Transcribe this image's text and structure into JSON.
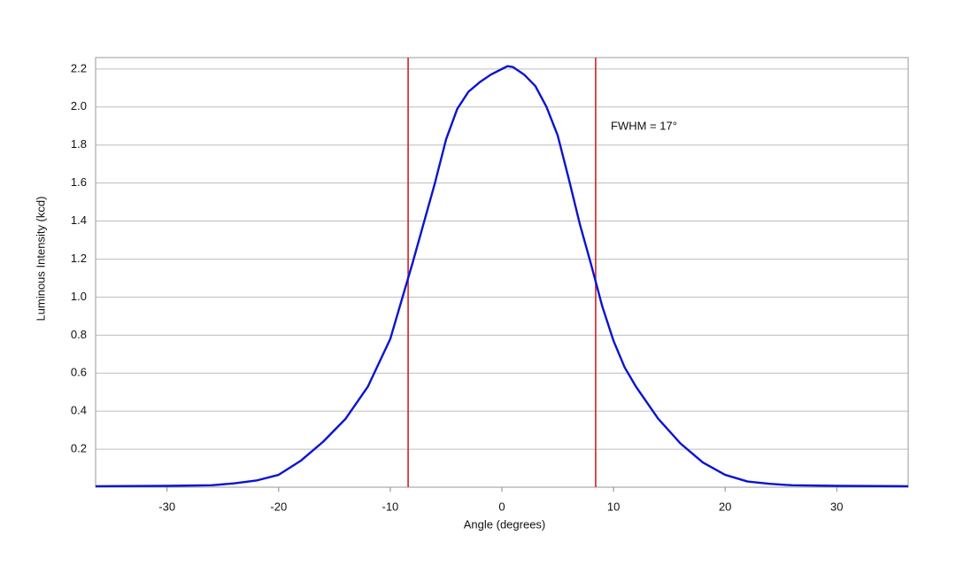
{
  "chart_data": {
    "type": "line",
    "x_label": "Angle (degrees)",
    "y_label": "Luminous Intensity (kcd)",
    "annotation": "FWHM = 17°",
    "xlim": [
      -36.4,
      36.4
    ],
    "ylim": [
      0,
      2.26
    ],
    "xticks": [
      -30,
      -20,
      -10,
      0,
      10,
      20,
      30
    ],
    "yticks": [
      0.2,
      0.4,
      0.6,
      0.8,
      {
        "value": 1,
        "label": "1.0"
      },
      1.2,
      1.4,
      1.6,
      1.8,
      {
        "value": 2,
        "label": "2.0"
      },
      2.2
    ],
    "grid": true,
    "x": [
      -36.4,
      -30,
      -26,
      -24,
      -22,
      -20,
      -18,
      -16,
      -14,
      -12,
      -10,
      -8,
      -6,
      -5,
      -4,
      -3,
      -2,
      -1,
      0,
      0.5,
      1,
      2,
      3,
      4,
      5,
      6,
      7,
      8,
      9,
      10,
      11,
      12,
      14,
      16,
      18,
      20,
      22,
      24,
      26,
      30,
      36.4
    ],
    "series": [
      {
        "color": "#0a14d0",
        "values": [
          0.005,
          0.007,
          0.01,
          0.02,
          0.035,
          0.065,
          0.14,
          0.24,
          0.36,
          0.53,
          0.78,
          1.18,
          1.6,
          1.83,
          1.99,
          2.08,
          2.13,
          2.17,
          2.2,
          2.215,
          2.21,
          2.17,
          2.11,
          2.0,
          1.85,
          1.62,
          1.38,
          1.17,
          0.95,
          0.77,
          0.63,
          0.53,
          0.36,
          0.23,
          0.13,
          0.065,
          0.03,
          0.018,
          0.01,
          0.007,
          0.005
        ]
      }
    ],
    "vlines": {
      "color": "#d42020",
      "x": [
        -8.4,
        8.4
      ]
    }
  }
}
